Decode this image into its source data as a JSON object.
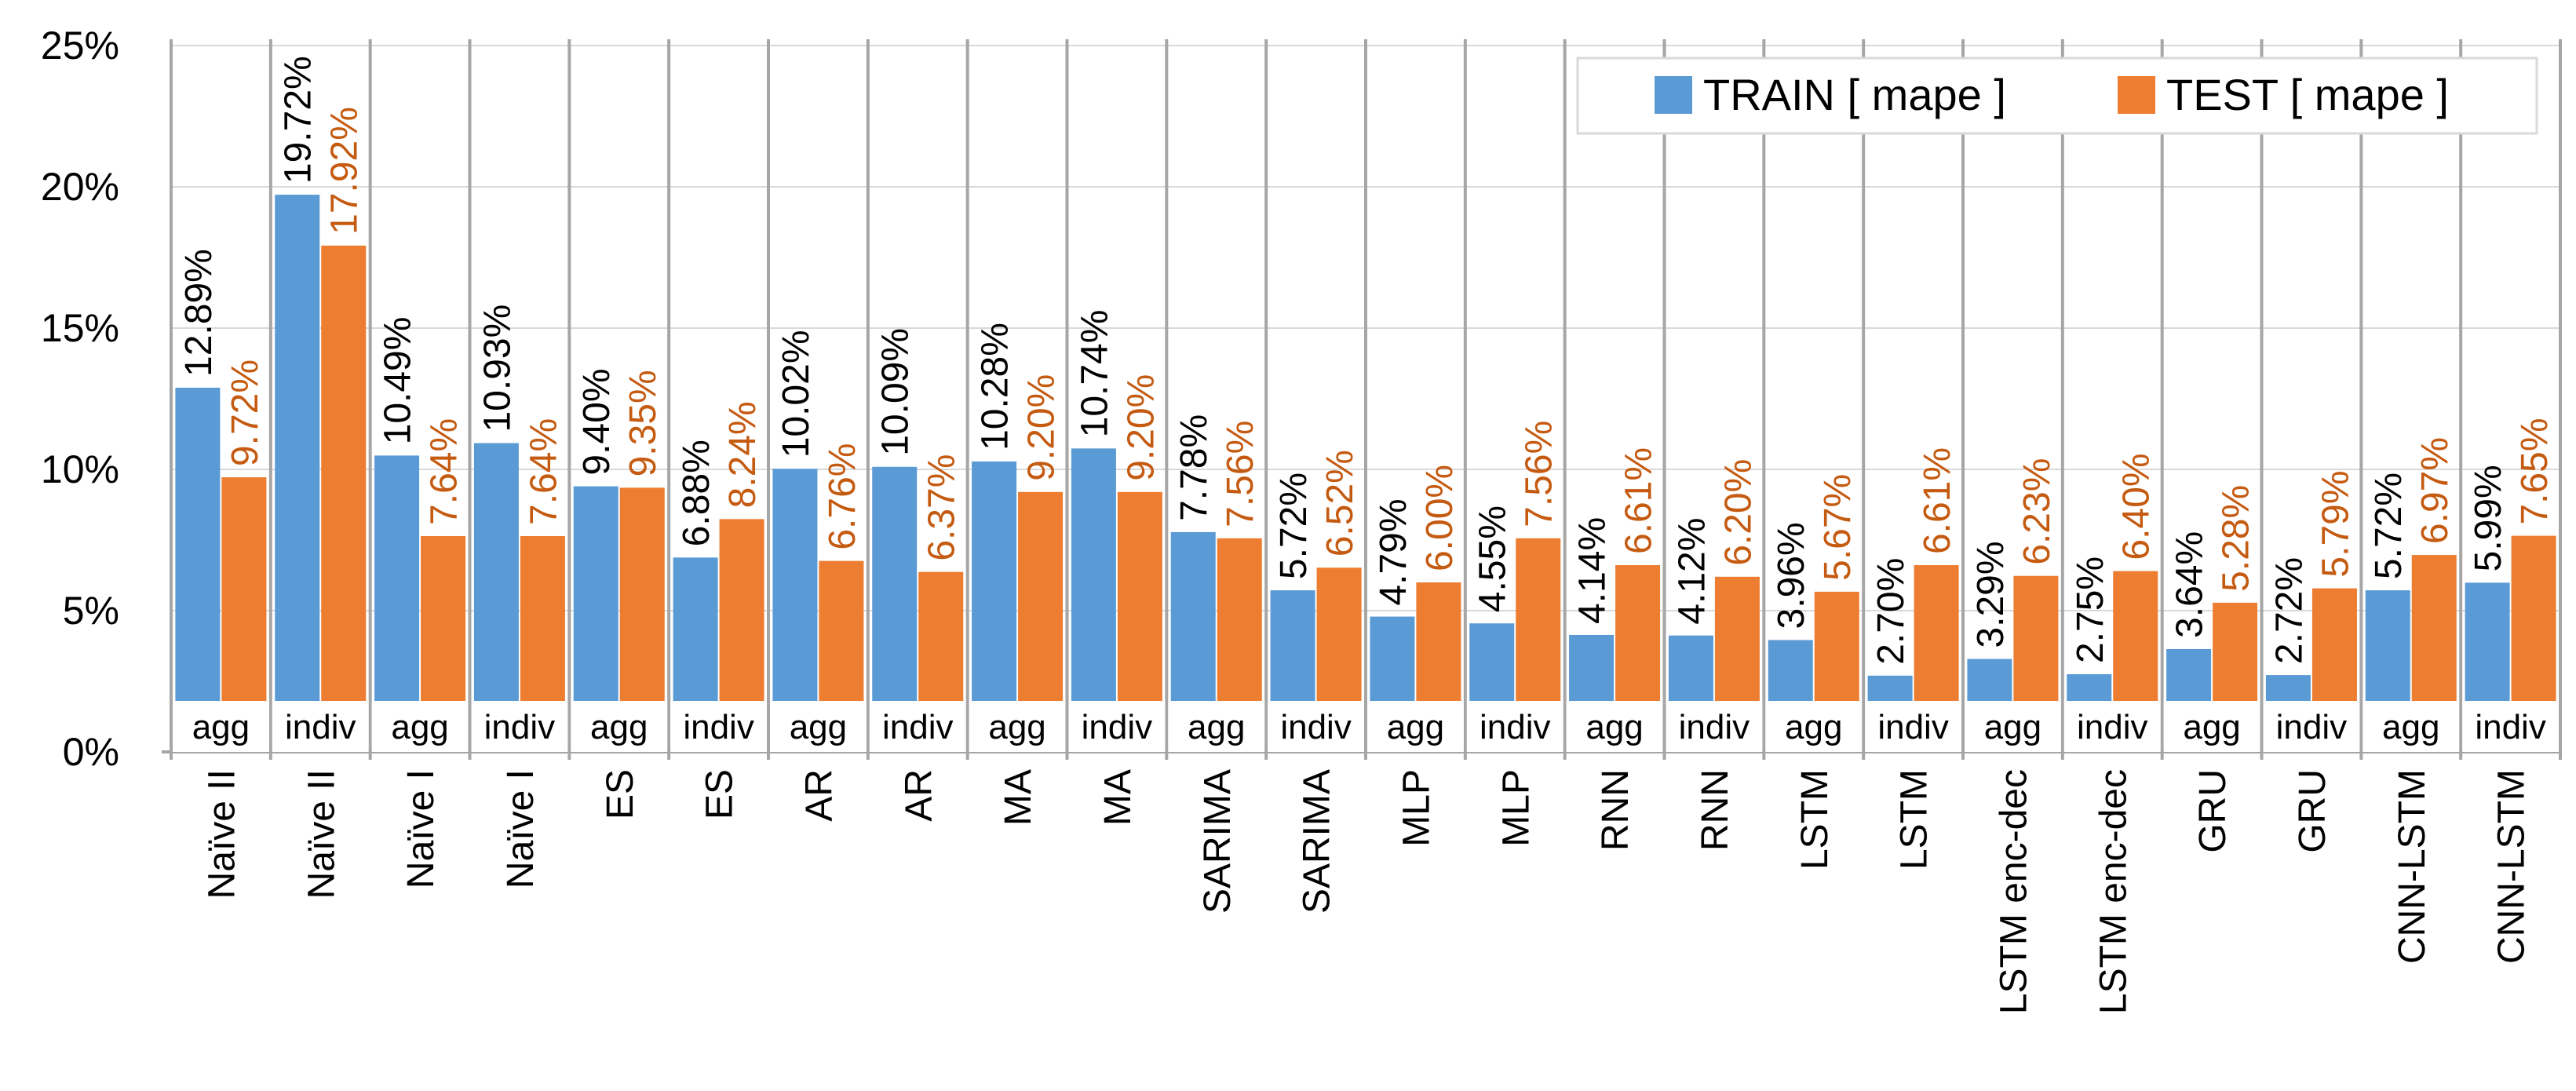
{
  "chart_data": {
    "type": "bar",
    "title": "",
    "xlabel": "",
    "ylabel": "",
    "ylim": [
      0,
      0.25
    ],
    "yticks": [
      "0%",
      "5%",
      "10%",
      "15%",
      "20%",
      "25%"
    ],
    "legend_position": "top-right",
    "categories": [
      {
        "model": "Naïve II",
        "mode": "agg"
      },
      {
        "model": "Naïve II",
        "mode": "indiv"
      },
      {
        "model": "Naïve I",
        "mode": "agg"
      },
      {
        "model": "Naïve I",
        "mode": "indiv"
      },
      {
        "model": "ES",
        "mode": "agg"
      },
      {
        "model": "ES",
        "mode": "indiv"
      },
      {
        "model": "AR",
        "mode": "agg"
      },
      {
        "model": "AR",
        "mode": "indiv"
      },
      {
        "model": "MA",
        "mode": "agg"
      },
      {
        "model": "MA",
        "mode": "indiv"
      },
      {
        "model": "SARIMA",
        "mode": "agg"
      },
      {
        "model": "SARIMA",
        "mode": "indiv"
      },
      {
        "model": "MLP",
        "mode": "agg"
      },
      {
        "model": "MLP",
        "mode": "indiv"
      },
      {
        "model": "RNN",
        "mode": "agg"
      },
      {
        "model": "RNN",
        "mode": "indiv"
      },
      {
        "model": "LSTM",
        "mode": "agg"
      },
      {
        "model": "LSTM",
        "mode": "indiv"
      },
      {
        "model": "LSTM enc-dec",
        "mode": "agg"
      },
      {
        "model": "LSTM enc-dec",
        "mode": "indiv"
      },
      {
        "model": "GRU",
        "mode": "agg"
      },
      {
        "model": "GRU",
        "mode": "indiv"
      },
      {
        "model": "CNN-LSTM",
        "mode": "agg"
      },
      {
        "model": "CNN-LSTM",
        "mode": "indiv"
      }
    ],
    "series": [
      {
        "name": "TRAIN [ mape ]",
        "color": "#5b9bd5",
        "values": [
          12.89,
          19.72,
          10.49,
          10.93,
          9.4,
          6.88,
          10.02,
          10.09,
          10.28,
          10.74,
          7.78,
          5.72,
          4.79,
          4.55,
          4.14,
          4.12,
          3.96,
          2.7,
          3.29,
          2.75,
          3.64,
          2.72,
          5.72,
          5.99
        ],
        "labels": [
          "12.89%",
          "19.72%",
          "10.49%",
          "10.93%",
          "9.40%",
          "6.88%",
          "10.02%",
          "10.09%",
          "10.28%",
          "10.74%",
          "7.78%",
          "5.72%",
          "4.79%",
          "4.55%",
          "4.14%",
          "4.12%",
          "3.96%",
          "2.70%",
          "3.29%",
          "2.75%",
          "3.64%",
          "2.72%",
          "5.72%",
          "5.99%"
        ]
      },
      {
        "name": "TEST [ mape ]",
        "color": "#ed7d31",
        "label_color": "#c55a11",
        "values": [
          9.72,
          17.92,
          7.64,
          7.64,
          9.35,
          8.24,
          6.76,
          6.37,
          9.2,
          9.2,
          7.56,
          6.52,
          6.0,
          7.56,
          6.61,
          6.2,
          5.67,
          6.61,
          6.23,
          6.4,
          5.28,
          5.79,
          6.97,
          7.65
        ],
        "labels": [
          "9.72%",
          "17.92%",
          "7.64%",
          "7.64%",
          "9.35%",
          "8.24%",
          "6.76%",
          "6.37%",
          "9.20%",
          "9.20%",
          "7.56%",
          "6.52%",
          "6.00%",
          "7.56%",
          "6.61%",
          "6.20%",
          "5.67%",
          "6.61%",
          "6.23%",
          "6.40%",
          "5.28%",
          "5.79%",
          "6.97%",
          "7.65%"
        ]
      }
    ]
  }
}
